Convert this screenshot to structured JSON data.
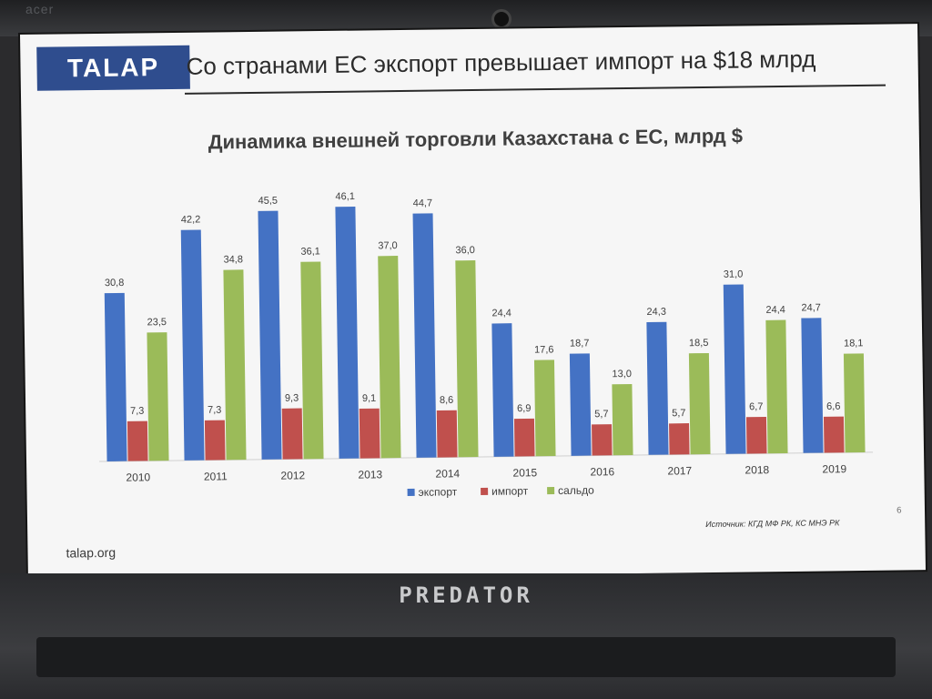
{
  "laptop": {
    "bezel_brand": "acer",
    "brand": "PREDATOR"
  },
  "slide": {
    "logo": "TALAP",
    "title": "Со странами ЕС экспорт превышает импорт на $18 млрд",
    "source": "Источник: КГД МФ РК, КС МНЭ РК",
    "page_number": "6",
    "website": "talap.org"
  },
  "colors": {
    "export": "#4472c4",
    "import": "#c0504d",
    "balance": "#9bbb59"
  },
  "chart_data": {
    "type": "bar",
    "title": "Динамика внешней торговли Казахстана с ЕС, млрд $",
    "xlabel": "",
    "ylabel": "",
    "categories": [
      "2010",
      "2011",
      "2012",
      "2013",
      "2014",
      "2015",
      "2016",
      "2017",
      "2018",
      "2019"
    ],
    "series": [
      {
        "name": "экспорт",
        "values": [
          30.8,
          42.2,
          45.5,
          46.1,
          44.7,
          24.4,
          18.7,
          24.3,
          31.0,
          24.7
        ],
        "labels": [
          "30,8",
          "42,2",
          "45,5",
          "46,1",
          "44,7",
          "24,4",
          "18,7",
          "24,3",
          "31,0",
          "24,7"
        ]
      },
      {
        "name": "импорт",
        "values": [
          7.3,
          7.3,
          9.3,
          9.1,
          8.6,
          6.9,
          5.7,
          5.7,
          6.7,
          6.6
        ],
        "labels": [
          "7,3",
          "7,3",
          "9,3",
          "9,1",
          "8,6",
          "6,9",
          "5,7",
          "5,7",
          "6,7",
          "6,6"
        ]
      },
      {
        "name": "сальдо",
        "values": [
          23.5,
          34.8,
          36.1,
          37.0,
          36.0,
          17.6,
          13.0,
          18.5,
          24.4,
          18.1
        ],
        "labels": [
          "23,5",
          "34,8",
          "36,1",
          "37,0",
          "36,0",
          "17,6",
          "13,0",
          "18,5",
          "24,4",
          "18,1"
        ]
      }
    ],
    "legend_position": "bottom",
    "grid": false
  }
}
